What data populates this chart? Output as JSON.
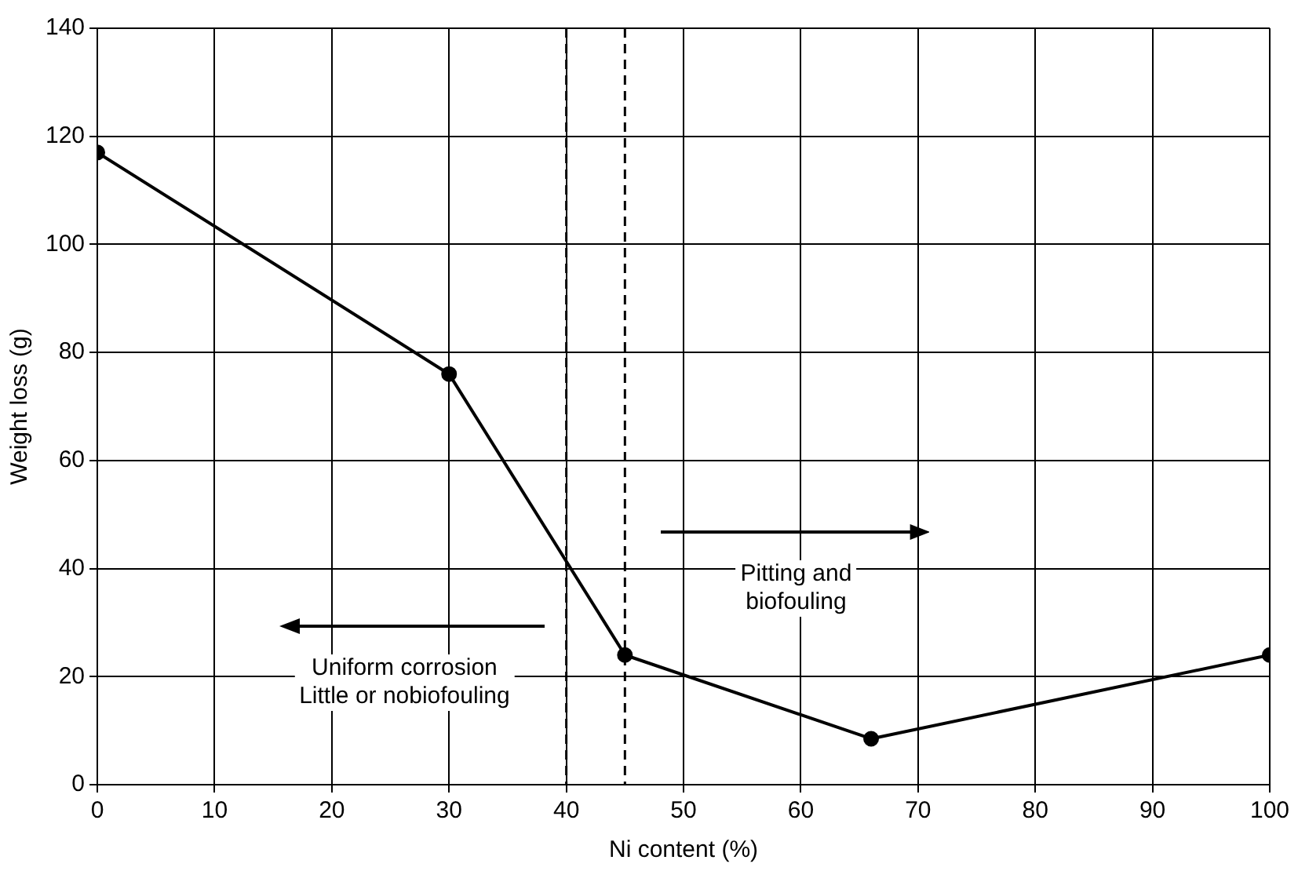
{
  "chart_data": {
    "type": "line",
    "xlabel": "Ni content (%)",
    "ylabel": "Weight loss (g)",
    "x": [
      0,
      30,
      45,
      66,
      100
    ],
    "series": [
      {
        "color": "#000000",
        "values": [
          117,
          76,
          24,
          8.5,
          24
        ]
      }
    ],
    "xlim": [
      0,
      100
    ],
    "xticks": [
      0,
      10,
      20,
      30,
      40,
      50,
      60,
      70,
      80,
      90,
      100
    ],
    "ylim": [
      0,
      140
    ],
    "yticks": [
      0,
      20,
      40,
      60,
      80,
      100,
      120,
      140
    ],
    "grid": true,
    "legend": false,
    "marker": "circle",
    "line_style": "solid",
    "ref_lines": [
      {
        "axis": "x",
        "value": 40,
        "color": "#000000",
        "line_style": "dashed"
      },
      {
        "axis": "x",
        "value": 45,
        "color": "#000000",
        "line_style": "dashed"
      }
    ],
    "annotations": [
      "Uniform corrosion\nLittle or nobiofouling",
      "Pitting and\nbiofouling"
    ]
  }
}
